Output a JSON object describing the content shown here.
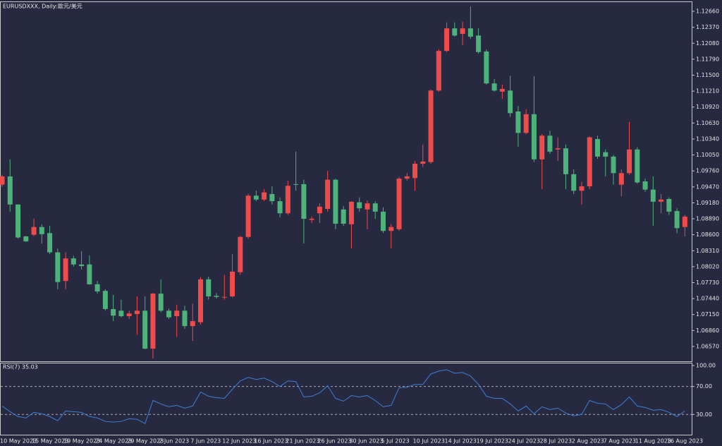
{
  "chart_data": [
    {
      "type": "candlestick",
      "title": "EURUSDXXX, Daily:",
      "subtitle": "歐元/美元",
      "categories": [
        "10 May 2023",
        null,
        null,
        null,
        "15 May 2023",
        null,
        null,
        null,
        "19 May 2023",
        null,
        null,
        null,
        "24 May 2023",
        null,
        null,
        null,
        "29 May 2023",
        null,
        null,
        null,
        "2 Jun 2023",
        null,
        null,
        null,
        "7 Jun 2023",
        null,
        null,
        null,
        "12 Jun 2023",
        null,
        null,
        null,
        "16 Jun 2023",
        null,
        null,
        null,
        "21 Jun 2023",
        null,
        null,
        null,
        "26 Jun 2023",
        null,
        null,
        null,
        "30 Jun 2023",
        null,
        null,
        null,
        "5 Jul 2023",
        null,
        null,
        null,
        "10 Jul 2023",
        null,
        null,
        null,
        "14 Jul 2023",
        null,
        null,
        null,
        "19 Jul 2023",
        null,
        null,
        null,
        "24 Jul 2023",
        null,
        null,
        null,
        "28 Jul 2023",
        null,
        null,
        null,
        "2 Aug 2023",
        null,
        null,
        null,
        "7 Aug 2023",
        null,
        null,
        null,
        "11 Aug 2023",
        null,
        null,
        null,
        "16 Aug 2023",
        null,
        null
      ],
      "open": [
        1.0951,
        1.0966,
        1.0915,
        1.0857,
        1.086,
        1.0874,
        1.0863,
        1.0828,
        1.0776,
        1.0817,
        1.0806,
        1.0806,
        1.077,
        1.0758,
        1.0725,
        1.0722,
        1.0712,
        1.0716,
        1.0722,
        1.0653,
        1.0753,
        1.0722,
        1.0712,
        1.0722,
        1.0694,
        1.0701,
        1.0779,
        1.0749,
        1.0746,
        1.0748,
        1.0792,
        1.0856,
        1.0931,
        1.0924,
        1.0934,
        1.0921,
        1.0899,
        1.0952,
        1.0952,
        1.0887,
        1.0899,
        1.0907,
        1.096,
        1.0906,
        1.0879,
        1.0919,
        1.0906,
        1.0917,
        1.0902,
        1.0867,
        1.087,
        1.0962,
        1.0963,
        1.0989,
        1.0992,
        1.1122,
        1.1194,
        1.1235,
        1.1225,
        1.1235,
        1.1222,
        1.1193,
        1.1135,
        1.112,
        1.1122,
        1.1084,
        1.1045,
        1.1079,
        1.0997,
        1.104,
        1.1015,
        1.1017,
        1.097,
        1.094,
        1.0948,
        1.1034,
        1.101,
        1.1002,
        1.0951,
        1.0972,
        1.1015,
        1.0957,
        1.0942,
        1.092,
        1.0925,
        1.0903,
        1.0874
      ],
      "high": [
        1.0969,
        1.0997,
        1.0915,
        1.0858,
        1.0889,
        1.0879,
        1.0876,
        1.0835,
        1.0828,
        1.0822,
        1.083,
        1.0822,
        1.0776,
        1.0761,
        1.0751,
        1.0742,
        1.0722,
        1.0748,
        1.0748,
        1.0754,
        1.0779,
        1.0726,
        1.0733,
        1.0731,
        1.0735,
        1.0783,
        1.0784,
        1.0754,
        1.0787,
        1.0825,
        1.0858,
        1.0934,
        1.094,
        1.0943,
        1.0948,
        1.0928,
        1.0958,
        1.1011,
        1.096,
        1.0893,
        1.0917,
        1.0976,
        1.0962,
        1.0912,
        1.0921,
        1.0928,
        1.0922,
        1.0921,
        1.091,
        1.0879,
        1.0965,
        1.0972,
        1.0994,
        1.1024,
        1.1124,
        1.1197,
        1.1246,
        1.1246,
        1.1247,
        1.1275,
        1.1235,
        1.1197,
        1.1143,
        1.1133,
        1.1149,
        1.1094,
        1.1088,
        1.1148,
        1.1043,
        1.1049,
        1.1037,
        1.1024,
        1.0979,
        1.0956,
        1.1039,
        1.104,
        1.1015,
        1.1005,
        1.0979,
        1.1065,
        1.1019,
        1.0962,
        1.0966,
        1.0934,
        1.0928,
        1.0908,
        1.0896
      ],
      "low": [
        1.0947,
        1.0902,
        1.0853,
        1.0847,
        1.0857,
        1.0844,
        1.0825,
        1.0761,
        1.0761,
        1.0802,
        1.0797,
        1.0769,
        1.0753,
        1.0722,
        1.0703,
        1.071,
        1.0707,
        1.0678,
        1.0652,
        1.0635,
        1.0719,
        1.0707,
        1.0674,
        1.0689,
        1.0667,
        1.0697,
        1.0742,
        1.0744,
        1.0742,
        1.0746,
        1.0787,
        1.0853,
        1.0921,
        1.0921,
        1.0915,
        1.0892,
        1.0896,
        1.094,
        1.0844,
        1.0881,
        1.0881,
        1.0902,
        1.087,
        1.0876,
        1.0835,
        1.0902,
        1.087,
        1.0889,
        1.0863,
        1.0835,
        1.0867,
        1.0958,
        1.094,
        1.0983,
        1.0989,
        1.112,
        1.1192,
        1.122,
        1.1205,
        1.1216,
        1.1189,
        1.1133,
        1.112,
        1.1107,
        1.1074,
        1.102,
        1.1043,
        1.0992,
        1.0943,
        1.1007,
        1.0994,
        1.0943,
        1.0934,
        1.0915,
        1.0943,
        1.0998,
        1.0966,
        1.0951,
        1.093,
        1.0969,
        1.0953,
        1.0938,
        1.0876,
        1.0899,
        1.0896,
        1.0863,
        1.0857
      ],
      "close": [
        1.0966,
        1.0915,
        1.0855,
        1.0848,
        1.0874,
        1.0861,
        1.0828,
        1.0774,
        1.0817,
        1.0806,
        1.0803,
        1.077,
        1.0757,
        1.0725,
        1.0713,
        1.0712,
        1.0717,
        1.0722,
        1.0653,
        1.0753,
        1.0722,
        1.071,
        1.0722,
        1.0694,
        1.0703,
        1.0779,
        1.0748,
        1.0747,
        1.0747,
        1.0793,
        1.0856,
        1.0931,
        1.0924,
        1.0937,
        1.0921,
        1.0899,
        1.0949,
        1.0951,
        1.0889,
        1.0889,
        1.0911,
        1.096,
        1.088,
        1.088,
        1.092,
        1.0908,
        1.0917,
        1.0902,
        1.0867,
        1.0874,
        1.0962,
        1.0966,
        1.0989,
        1.0993,
        1.1122,
        1.1194,
        1.1235,
        1.1222,
        1.1235,
        1.122,
        1.1192,
        1.1135,
        1.1122,
        1.1125,
        1.1081,
        1.1045,
        1.1079,
        1.0997,
        1.104,
        1.1011,
        1.1017,
        1.097,
        1.094,
        1.0948,
        1.1037,
        1.1002,
        1.1002,
        1.0972,
        1.0972,
        1.1015,
        1.0955,
        1.0942,
        1.092,
        1.0924,
        1.0902,
        1.0872,
        1.0893
      ],
      "up_color": "#f04b4b",
      "down_color": "#4db37a",
      "ylim": [
        1.063,
        1.1284
      ],
      "yticks": [
        {
          "value": 1.0657,
          "label": "1.06570"
        },
        {
          "value": 1.0686,
          "label": "1.06860"
        },
        {
          "value": 1.0715,
          "label": "1.07150"
        },
        {
          "value": 1.0744,
          "label": "1.07440"
        },
        {
          "value": 1.0773,
          "label": "1.07730"
        },
        {
          "value": 1.0802,
          "label": "1.08020"
        },
        {
          "value": 1.0831,
          "label": "1.08310"
        },
        {
          "value": 1.086,
          "label": "1.08600"
        },
        {
          "value": 1.0889,
          "label": "1.08890"
        },
        {
          "value": 1.0918,
          "label": "1.09180"
        },
        {
          "value": 1.0947,
          "label": "1.09470"
        },
        {
          "value": 1.0976,
          "label": "1.09760"
        },
        {
          "value": 1.1005,
          "label": "1.10050"
        },
        {
          "value": 1.1034,
          "label": "1.10340"
        },
        {
          "value": 1.1063,
          "label": "1.10630"
        },
        {
          "value": 1.1092,
          "label": "1.10920"
        },
        {
          "value": 1.1121,
          "label": "1.11210"
        },
        {
          "value": 1.115,
          "label": "1.11500"
        },
        {
          "value": 1.1179,
          "label": "1.11790"
        },
        {
          "value": 1.1208,
          "label": "1.12080"
        },
        {
          "value": 1.1237,
          "label": "1.12370"
        },
        {
          "value": 1.1266,
          "label": "1.12660"
        }
      ],
      "grid": false
    },
    {
      "type": "line",
      "title": "RSI(7) 35.03",
      "values": [
        42,
        34,
        27,
        25,
        33,
        31,
        27,
        21,
        35,
        34,
        33,
        27,
        25,
        20,
        19,
        20,
        24,
        23,
        17,
        50,
        45,
        41,
        43,
        39,
        42,
        62,
        56,
        54,
        53,
        66,
        78,
        83,
        80,
        82,
        77,
        70,
        78,
        77,
        55,
        56,
        61,
        71,
        53,
        49,
        57,
        55,
        57,
        50,
        41,
        43,
        68,
        69,
        73,
        73,
        88,
        92,
        94,
        89,
        90,
        85,
        73,
        56,
        53,
        53,
        45,
        35,
        42,
        31,
        41,
        37,
        39,
        32,
        28,
        30,
        50,
        46,
        45,
        37,
        44,
        55,
        42,
        40,
        36,
        37,
        33,
        27,
        35.03
      ],
      "color": "#3d7fd6",
      "ylim": [
        0,
        103
      ],
      "yticks": [
        {
          "value": 100,
          "label": "100.00"
        },
        {
          "value": 70,
          "label": "70.00"
        },
        {
          "value": 30,
          "label": "30.00"
        }
      ],
      "levels": [
        70,
        30
      ]
    }
  ]
}
